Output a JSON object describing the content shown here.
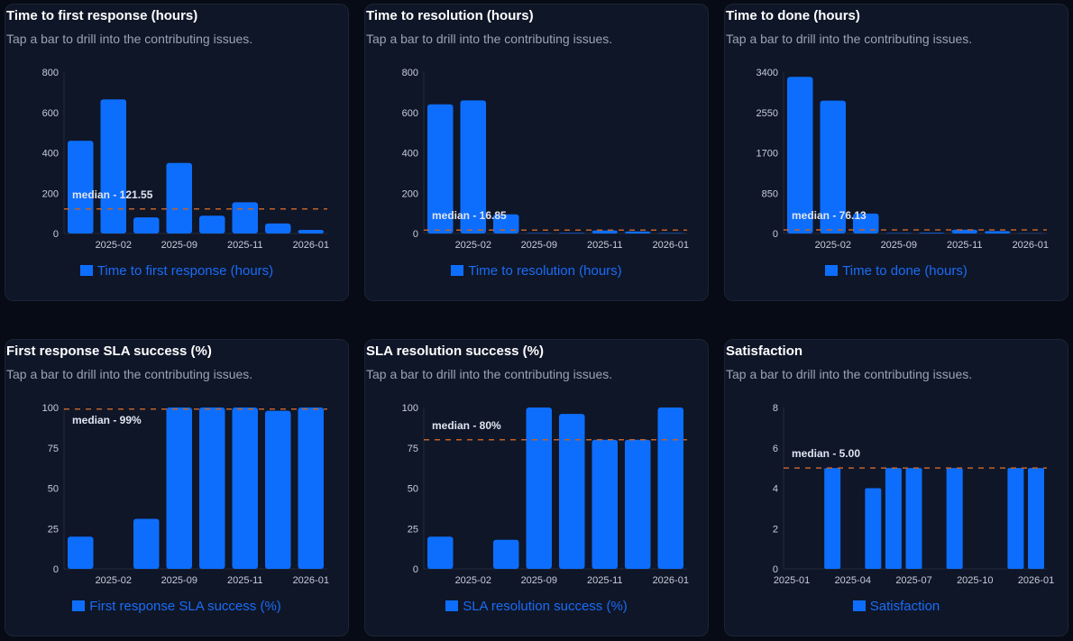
{
  "colors": {
    "bar": "#0d6efd",
    "median": "#c0622a",
    "axis_text": "#c8cdd8",
    "legend": "#1a6cf5"
  },
  "chart_data": [
    {
      "type": "bar",
      "title": "Time to first response (hours)",
      "subtitle": "Tap a bar to drill into the contributing issues.",
      "legend": "Time to first response (hours)",
      "categories": [
        "",
        "2025-02",
        "",
        "2025-09",
        "",
        "2025-11",
        "",
        "2026-01"
      ],
      "values": [
        460,
        665,
        80,
        350,
        88,
        155,
        50,
        18
      ],
      "yticks": [
        0,
        200,
        400,
        600,
        800
      ],
      "ylim": [
        0,
        800
      ],
      "median": 121.55,
      "median_label": "median - 121.55",
      "legend_placement": "bottom",
      "grid": false
    },
    {
      "type": "bar",
      "title": "Time to resolution (hours)",
      "subtitle": "Tap a bar to drill into the contributing issues.",
      "legend": "Time to resolution (hours)",
      "categories": [
        "",
        "2025-02",
        "",
        "2025-09",
        "",
        "2025-11",
        "",
        "2026-01"
      ],
      "values": [
        640,
        660,
        95,
        2,
        3,
        15,
        10,
        2
      ],
      "yticks": [
        0,
        200,
        400,
        600,
        800
      ],
      "ylim": [
        0,
        800
      ],
      "median": 16.85,
      "median_label": "median - 16.85",
      "legend_placement": "bottom",
      "grid": false
    },
    {
      "type": "bar",
      "title": "Time to done (hours)",
      "subtitle": "Tap a bar to drill into the contributing issues.",
      "legend": "Time to done (hours)",
      "categories": [
        "",
        "2025-02",
        "",
        "2025-09",
        "",
        "2025-11",
        "",
        "2026-01"
      ],
      "values": [
        3300,
        2800,
        420,
        10,
        15,
        80,
        50,
        5
      ],
      "yticks": [
        0,
        850,
        1700,
        2550,
        3400
      ],
      "ylim": [
        0,
        3400
      ],
      "median": 76.13,
      "median_label": "median - 76.13",
      "legend_placement": "bottom",
      "grid": false
    },
    {
      "type": "bar",
      "title": "First response SLA success (%)",
      "subtitle": "Tap a bar to drill into the contributing issues.",
      "legend": "First response SLA success (%)",
      "categories": [
        "",
        "2025-02",
        "",
        "2025-09",
        "",
        "2025-11",
        "",
        "2026-01"
      ],
      "values": [
        20,
        0,
        31,
        100,
        100,
        100,
        98,
        100
      ],
      "yticks": [
        0,
        25,
        50,
        75,
        100
      ],
      "ylim": [
        0,
        100
      ],
      "median": 99,
      "median_label": "median - 99%",
      "legend_placement": "bottom",
      "grid": false
    },
    {
      "type": "bar",
      "title": "SLA resolution success (%)",
      "subtitle": "Tap a bar to drill into the contributing issues.",
      "legend": "SLA resolution success (%)",
      "categories": [
        "",
        "2025-02",
        "",
        "2025-09",
        "",
        "2025-11",
        "",
        "2026-01"
      ],
      "values": [
        20,
        0,
        18,
        100,
        96,
        80,
        80,
        100
      ],
      "yticks": [
        0,
        25,
        50,
        75,
        100
      ],
      "ylim": [
        0,
        100
      ],
      "median": 80,
      "median_label": "median - 80%",
      "legend_placement": "bottom",
      "grid": false
    },
    {
      "type": "bar",
      "title": "Satisfaction",
      "subtitle": "Tap a bar to drill into the contributing issues.",
      "legend": "Satisfaction",
      "x": [
        "2025-03",
        "2025-05",
        "2025-06",
        "2025-07",
        "2025-09",
        "2025-12",
        "2026-01"
      ],
      "values": [
        5,
        4,
        5,
        5,
        5,
        5,
        5
      ],
      "xticks": [
        "2025-01",
        "2025-04",
        "2025-07",
        "2025-10",
        "2026-01"
      ],
      "yticks": [
        0,
        2,
        4,
        6,
        8
      ],
      "ylim": [
        0,
        8
      ],
      "median": 5.0,
      "median_label": "median - 5.00",
      "legend_placement": "bottom",
      "grid": false
    }
  ]
}
